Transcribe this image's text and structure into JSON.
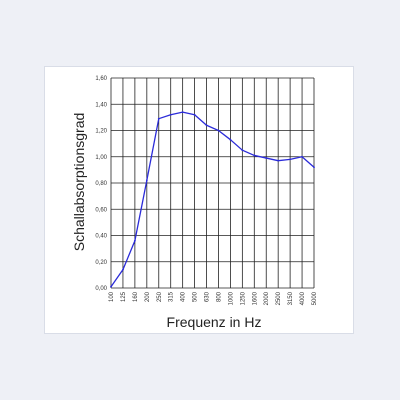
{
  "chart_data": {
    "type": "line",
    "title": "",
    "xlabel": "Frequenz in Hz",
    "ylabel": "Schallabsorptionsgrad",
    "categories": [
      "100",
      "125",
      "160",
      "200",
      "250",
      "315",
      "400",
      "500",
      "630",
      "800",
      "1000",
      "1250",
      "1600",
      "2000",
      "2500",
      "3150",
      "4000",
      "5000"
    ],
    "y_tick_labels": [
      "0,00",
      "0,20",
      "0,40",
      "0,60",
      "0,80",
      "1,00",
      "1,20",
      "1,40",
      "1,60"
    ],
    "y_ticks": [
      0,
      0.2,
      0.4,
      0.6,
      0.8,
      1.0,
      1.2,
      1.4,
      1.6
    ],
    "ylim": [
      0,
      1.6
    ],
    "grid": true,
    "series": [
      {
        "values": [
          0.01,
          0.14,
          0.36,
          0.82,
          1.29,
          1.32,
          1.34,
          1.32,
          1.24,
          1.2,
          1.13,
          1.05,
          1.01,
          0.99,
          0.97,
          0.98,
          1.0,
          0.92
        ],
        "color": "#2b2bd9"
      }
    ]
  }
}
